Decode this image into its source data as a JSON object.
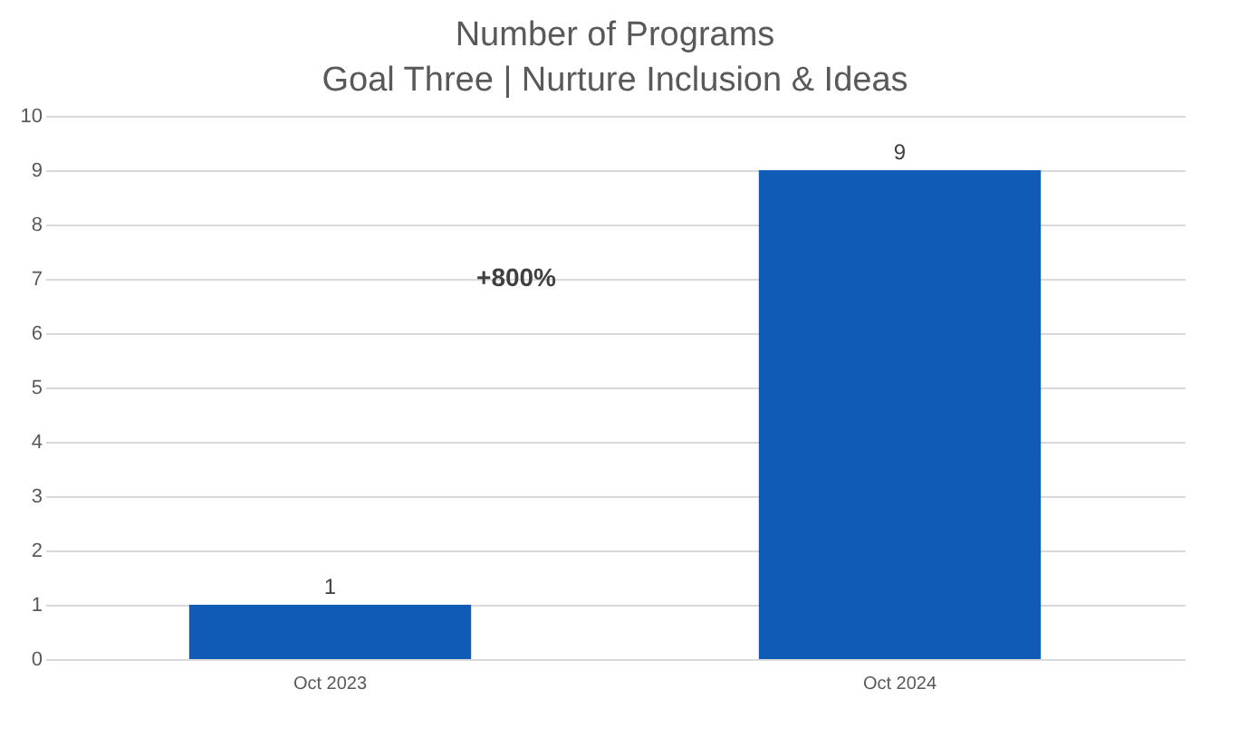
{
  "chart_data": {
    "type": "bar",
    "title": "Number of Programs",
    "subtitle": "Goal Three | Nurture Inclusion & Ideas",
    "categories": [
      "Oct 2023",
      "Oct 2024"
    ],
    "values": [
      1,
      9
    ],
    "color": "#0f5bb5",
    "ylim": [
      0,
      10
    ],
    "yticks": [
      0,
      1,
      2,
      3,
      4,
      5,
      6,
      7,
      8,
      9,
      10
    ],
    "grid": "y",
    "data_labels": true,
    "annotations": [
      "+800%"
    ]
  }
}
